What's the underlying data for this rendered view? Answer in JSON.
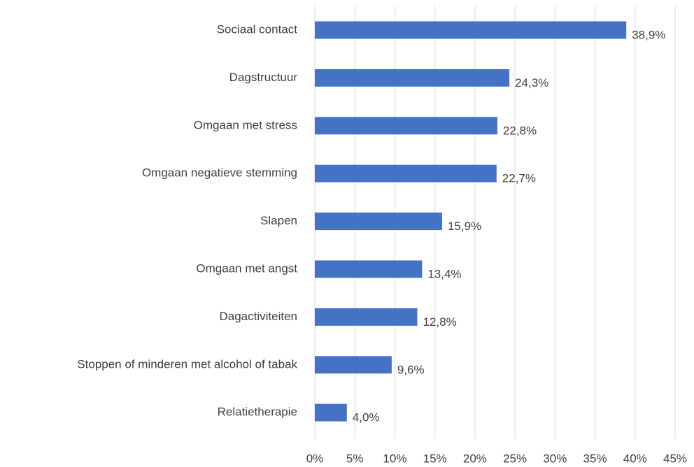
{
  "chart_data": {
    "type": "bar",
    "orientation": "horizontal",
    "categories": [
      "Sociaal contact",
      "Dagstructuur",
      "Omgaan met stress",
      "Omgaan negatieve stemming",
      "Slapen",
      "Omgaan met angst",
      "Dagactiviteiten",
      "Stoppen of minderen met alcohol of tabak",
      "Relatietherapie"
    ],
    "values": [
      38.9,
      24.3,
      22.8,
      22.7,
      15.9,
      13.4,
      12.8,
      9.6,
      4.0
    ],
    "value_labels": [
      "38,9%",
      "24,3%",
      "22,8%",
      "22,7%",
      "15,9%",
      "13,4%",
      "12,8%",
      "9,6%",
      "4,0%"
    ],
    "color": "#4472c4",
    "xlim": [
      0,
      45
    ],
    "xticks": [
      {
        "value": 0,
        "label": "0%"
      },
      {
        "value": 5,
        "label": "5%"
      },
      {
        "value": 10,
        "label": "10%"
      },
      {
        "value": 15,
        "label": "15%"
      },
      {
        "value": 20,
        "label": "20%"
      },
      {
        "value": 25,
        "label": "25%"
      },
      {
        "value": 30,
        "label": "30%"
      },
      {
        "value": 35,
        "label": "35%"
      },
      {
        "value": 40,
        "label": "40%"
      },
      {
        "value": 45,
        "label": "45%"
      }
    ],
    "grid": true
  }
}
